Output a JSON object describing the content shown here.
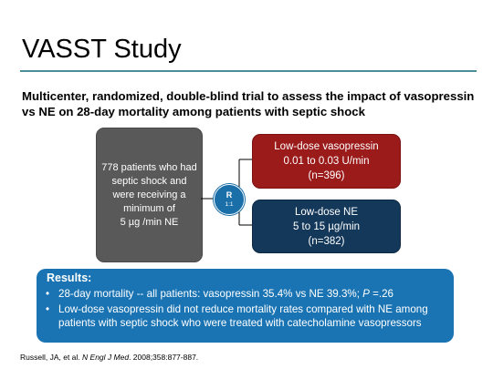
{
  "slide": {
    "title": "VASST Study",
    "subtitle": "Multicenter, randomized, double-blind trial to assess the impact of vasopressin vs NE on 28-day mortality among patients with septic shock"
  },
  "flowchart": {
    "patients_box": {
      "lines": [
        "778 patients who had",
        "septic shock and",
        "were receiving a",
        "minimum of",
        "5 µg /min NE"
      ]
    },
    "randomization": {
      "letter": "R",
      "ratio": "1:1"
    },
    "arms": [
      {
        "lines": [
          "Low-dose vasopressin",
          "0.01 to 0.03 U/min",
          "(n=396)"
        ],
        "color": "#9b1a1a"
      },
      {
        "lines": [
          "Low-dose NE",
          "5 to 15 µg/min",
          "(n=382)"
        ],
        "color": "#14385a"
      }
    ]
  },
  "results": {
    "heading": "Results:",
    "bullet1_prefix": "28-day mortality -- all patients: vasopressin 35.4% vs NE 39.3%; ",
    "bullet1_p": "P",
    "bullet1_suffix": " =.26",
    "bullet2": "Low-dose vasopressin did not reduce mortality rates compared with NE among patients with septic shock who were treated with catecholamine vasopressors",
    "color": "#1a74b3"
  },
  "citation": {
    "authors": "Russell, JA, et al. ",
    "journal": "N Engl J Med",
    "details": ". 2008;358:877-887."
  }
}
